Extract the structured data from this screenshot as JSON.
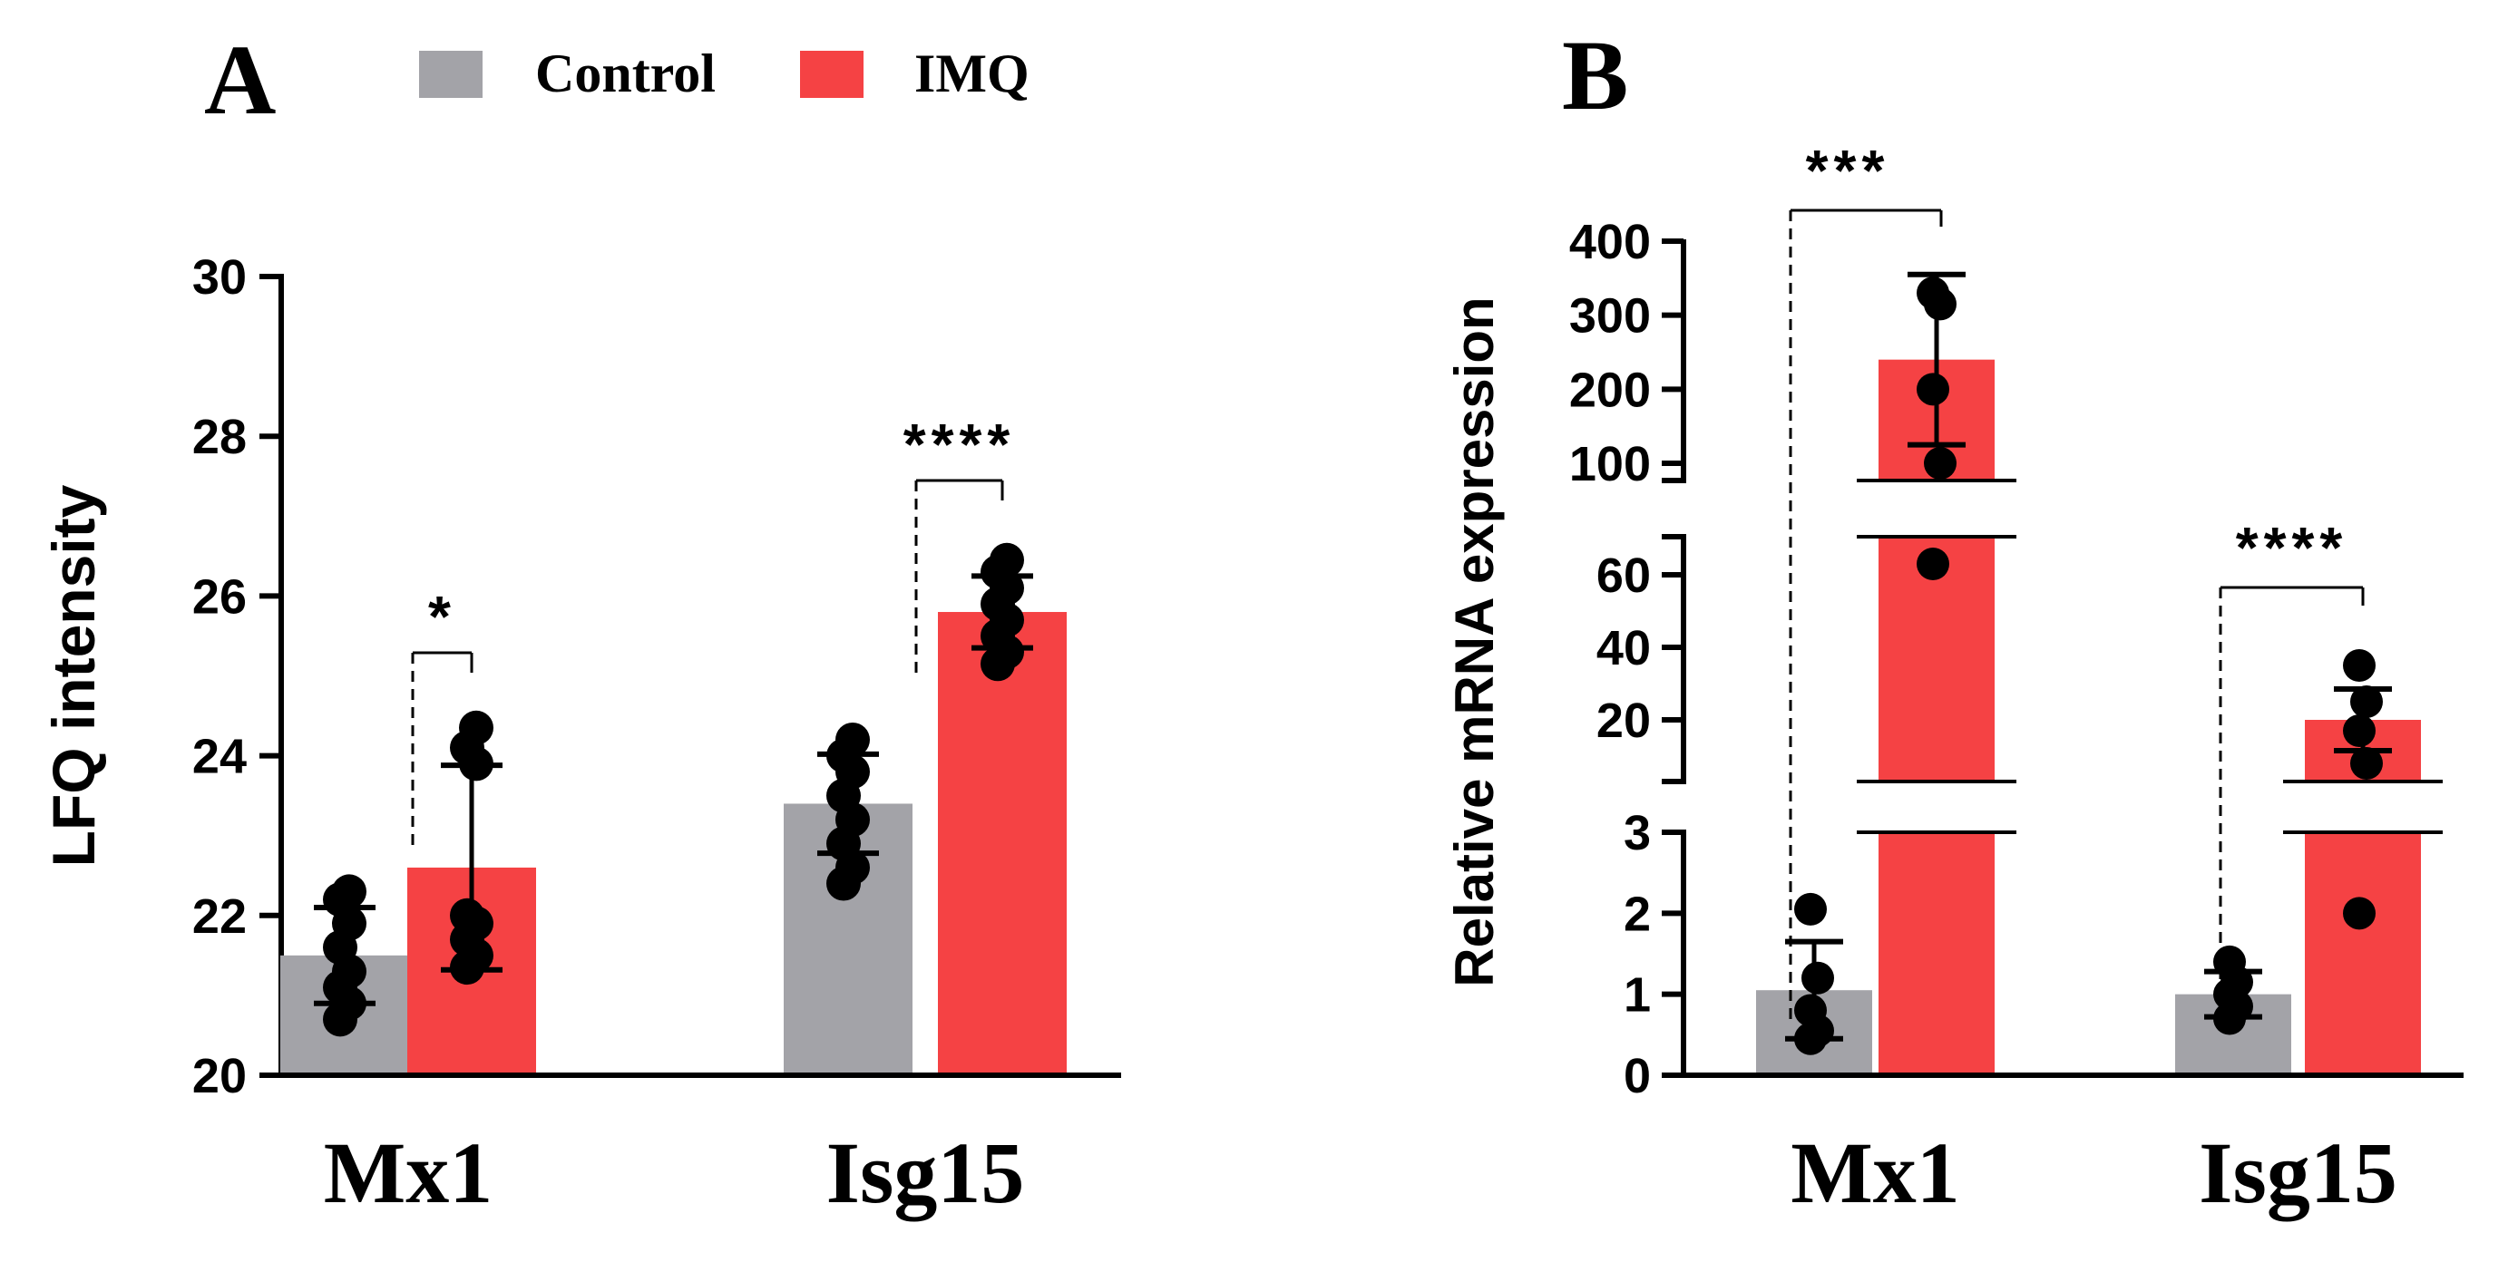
{
  "legend": {
    "items": [
      {
        "label": "Control",
        "color": "#a3a3a8"
      },
      {
        "label": "IMQ",
        "color": "#f54244"
      }
    ],
    "placement": "top"
  },
  "chart_data": [
    {
      "panel_label": "A",
      "type": "bar",
      "categories": [
        "Mx1",
        "Isg15"
      ],
      "series": [
        {
          "name": "Control",
          "color": "#a3a3a8",
          "values": [
            21.5,
            23.4
          ],
          "sd": [
            0.6,
            0.62
          ],
          "points": [
            [
              20.7,
              20.9,
              21.1,
              21.3,
              21.6,
              21.9,
              22.2,
              22.3
            ],
            [
              22.4,
              22.6,
              22.9,
              23.2,
              23.5,
              23.8,
              24.0,
              24.2
            ]
          ]
        },
        {
          "name": "IMQ",
          "color": "#f54244",
          "values": [
            22.6,
            25.8
          ],
          "sd": [
            1.28,
            0.45
          ],
          "points": [
            [
              21.35,
              21.5,
              21.7,
              21.9,
              22.0,
              23.9,
              24.1,
              24.35
            ],
            [
              25.15,
              25.3,
              25.5,
              25.7,
              25.9,
              26.1,
              26.3,
              26.45
            ]
          ]
        }
      ],
      "ylabel": "LFQ intensity",
      "ylim": [
        20,
        30
      ],
      "yticks": [
        "20",
        "22",
        "24",
        "26",
        "28",
        "30"
      ],
      "significance": [
        "*",
        "****"
      ],
      "grid": false
    },
    {
      "panel_label": "B",
      "type": "bar",
      "categories": [
        "Mx1",
        "Isg15"
      ],
      "series": [
        {
          "name": "Control",
          "color": "#a3a3a8",
          "values": [
            1.05,
            1.0
          ],
          "sd": [
            0.6,
            0.28
          ],
          "points": [
            [
              0.45,
              0.55,
              0.8,
              1.2,
              2.05
            ],
            [
              0.7,
              0.85,
              1.0,
              1.15,
              1.4
            ]
          ]
        },
        {
          "name": "IMQ",
          "color": "#f54244",
          "values": [
            240,
            20
          ],
          "sd": [
            115,
            8.5
          ],
          "points": [
            [
              63,
              100,
              200,
              315,
              330
            ],
            [
              2,
              8,
              17,
              25,
              35
            ]
          ]
        }
      ],
      "ylabel": "Relative mRNA expression",
      "yscale": "broken",
      "ysegments": [
        {
          "range": [
            0,
            3
          ],
          "ticks": [
            "0",
            "1",
            "2",
            "3"
          ]
        },
        {
          "range": [
            3,
            70
          ],
          "ticks": [
            "20",
            "40",
            "60"
          ]
        },
        {
          "range": [
            70,
            420
          ],
          "ticks": [
            "100",
            "200",
            "300",
            "400"
          ]
        }
      ],
      "significance": [
        "***",
        "****"
      ],
      "grid": false
    }
  ]
}
